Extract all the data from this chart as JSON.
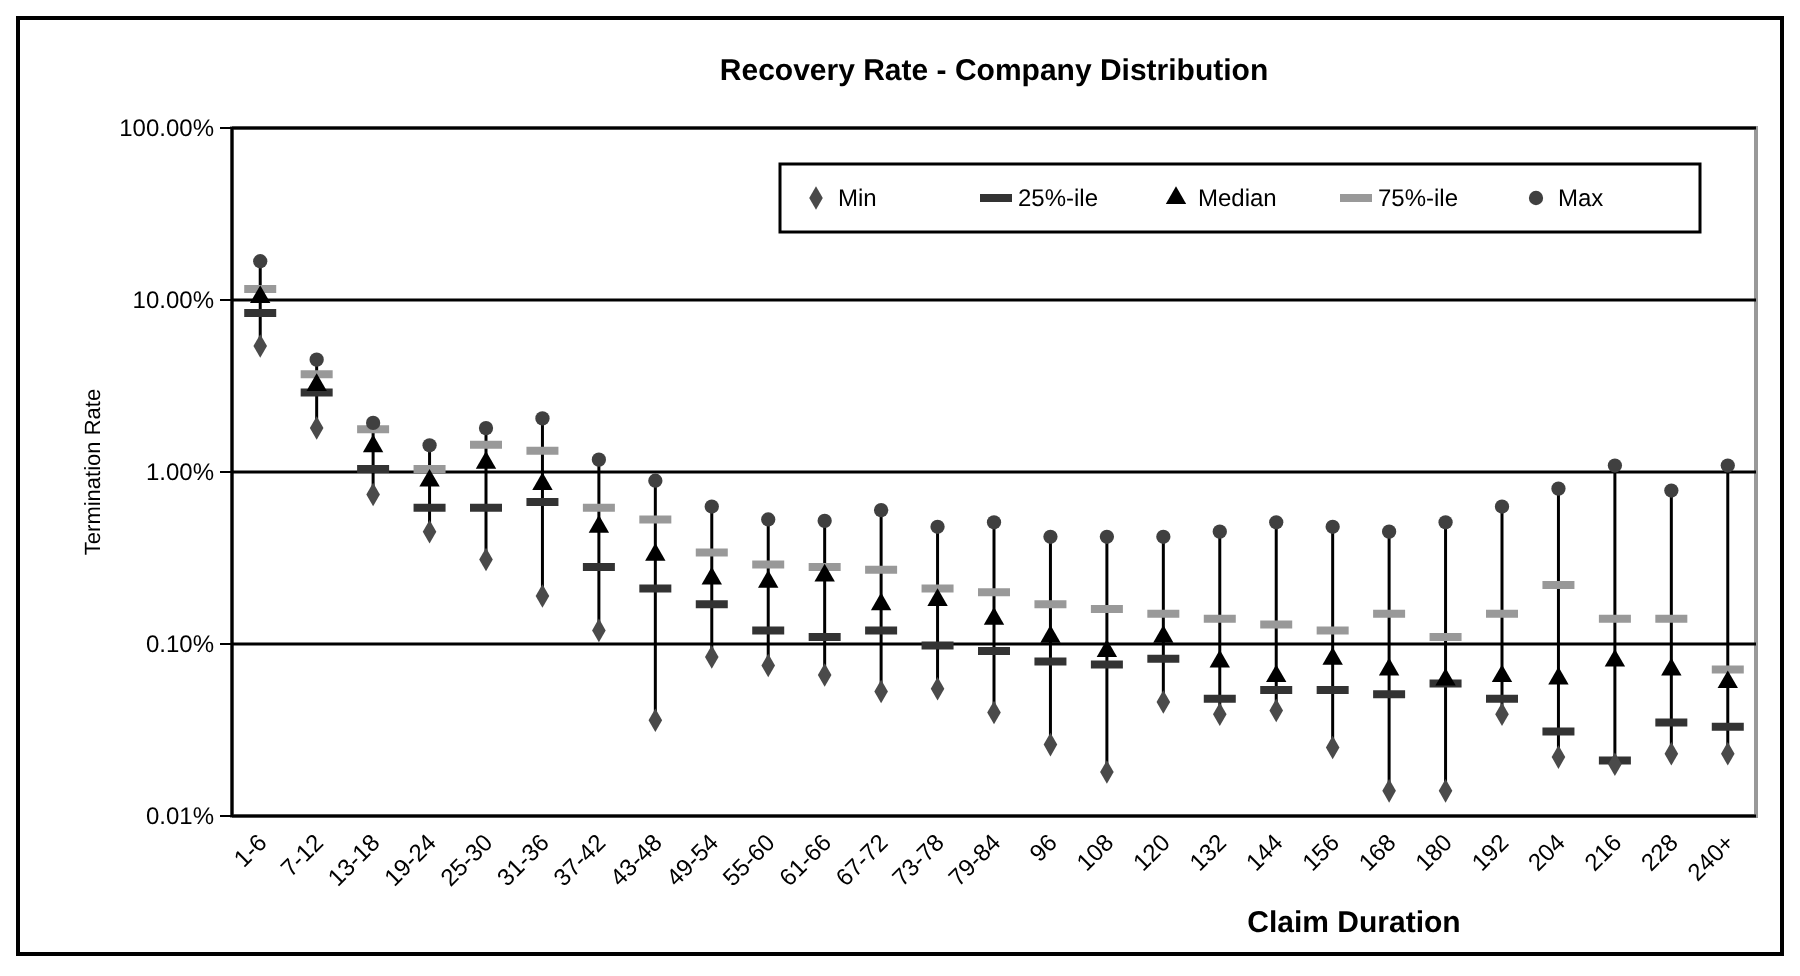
{
  "chart_data": {
    "type": "scatter",
    "title": "Recovery Rate - Company Distribution",
    "xlabel": "Claim Duration",
    "ylabel": "Termination Rate",
    "categories": [
      "1-6",
      "7-12",
      "13-18",
      "19-24",
      "25-30",
      "31-36",
      "37-42",
      "43-48",
      "49-54",
      "55-60",
      "61-66",
      "67-72",
      "73-78",
      "79-84",
      "96",
      "108",
      "120",
      "132",
      "144",
      "156",
      "168",
      "180",
      "192",
      "204",
      "216",
      "228",
      "240+"
    ],
    "log": true,
    "ylim": [
      0.01,
      100
    ],
    "yticks": [
      {
        "value": 0.01,
        "label": "0.01%"
      },
      {
        "value": 0.1,
        "label": "0.10%"
      },
      {
        "value": 1,
        "label": "1.00%"
      },
      {
        "value": 10,
        "label": "10.00%"
      },
      {
        "value": 100,
        "label": "100.00%"
      }
    ],
    "grid": "y",
    "legend": "top right",
    "series": [
      {
        "name": "Min",
        "color": "#4a4a4a",
        "marker": "diamond",
        "values": [
          5.4,
          1.8,
          0.74,
          0.45,
          0.31,
          0.19,
          0.12,
          0.036,
          0.084,
          0.075,
          0.066,
          0.053,
          0.055,
          0.04,
          0.026,
          0.018,
          0.046,
          0.039,
          0.041,
          0.025,
          0.014,
          0.014,
          0.039,
          0.022,
          0.02,
          0.023,
          0.023
        ]
      },
      {
        "name": "25%-ile",
        "color": "#333333",
        "values": [
          8.4,
          2.9,
          1.04,
          0.62,
          0.62,
          0.67,
          0.28,
          0.21,
          0.17,
          0.12,
          0.11,
          0.12,
          0.098,
          0.091,
          0.079,
          0.076,
          0.082,
          0.048,
          0.054,
          0.054,
          0.051,
          0.059,
          0.048,
          0.031,
          0.021,
          0.035,
          0.033
        ]
      },
      {
        "name": "Median",
        "color": "#000000",
        "marker": "triangle",
        "values": [
          10.4,
          3.2,
          1.41,
          0.89,
          1.13,
          0.85,
          0.48,
          0.33,
          0.24,
          0.23,
          0.25,
          0.17,
          0.18,
          0.14,
          0.11,
          0.091,
          0.11,
          0.079,
          0.065,
          0.082,
          0.071,
          0.062,
          0.065,
          0.063,
          0.08,
          0.071,
          0.06
        ]
      },
      {
        "name": "75%-ile",
        "color": "#999999",
        "values": [
          11.6,
          3.7,
          1.77,
          1.04,
          1.44,
          1.33,
          0.62,
          0.53,
          0.34,
          0.29,
          0.28,
          0.27,
          0.21,
          0.2,
          0.17,
          0.16,
          0.15,
          0.14,
          0.13,
          0.12,
          0.15,
          0.11,
          0.15,
          0.22,
          0.14,
          0.14,
          0.071
        ]
      },
      {
        "name": "Max",
        "color": "#404040",
        "marker": "circle",
        "values": [
          16.8,
          4.5,
          1.93,
          1.43,
          1.8,
          2.05,
          1.18,
          0.89,
          0.63,
          0.53,
          0.52,
          0.6,
          0.48,
          0.51,
          0.42,
          0.42,
          0.42,
          0.45,
          0.51,
          0.48,
          0.45,
          0.51,
          0.63,
          0.8,
          1.09,
          0.78,
          1.09
        ]
      }
    ]
  }
}
